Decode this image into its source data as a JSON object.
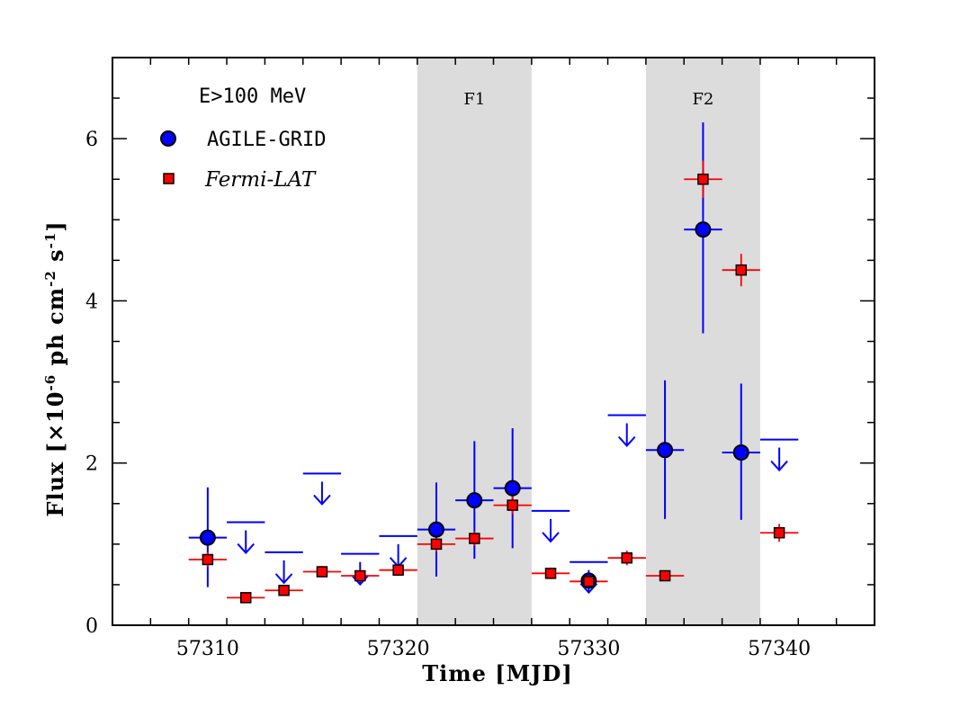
{
  "chart_data": {
    "type": "scatter",
    "xlabel": "Time [MJD]",
    "ylabel_parts": [
      "Flux [×10",
      "-6",
      " ph cm",
      "-2",
      " s",
      "-1",
      "]"
    ],
    "xlim": [
      57305,
      57345
    ],
    "ylim": [
      0,
      7
    ],
    "x_ticks": [
      57310,
      57320,
      57330,
      57340
    ],
    "y_ticks": [
      0,
      2,
      4,
      6
    ],
    "energy_label": "E>100 MeV",
    "bands": [
      {
        "label": "F1",
        "x0": 57321,
        "x1": 57327,
        "color": "#dcdcdc"
      },
      {
        "label": "F2",
        "x0": 57333,
        "x1": 57339,
        "color": "#dcdcdc"
      }
    ],
    "series": [
      {
        "name": "AGILE-GRID",
        "marker": "circle",
        "color": "#0000ff",
        "points": [
          {
            "x": 57310,
            "y": 1.08,
            "xerr": 1,
            "ylo": 0.47,
            "yhi": 1.7
          },
          {
            "x": 57322,
            "y": 1.18,
            "xerr": 1,
            "ylo": 0.6,
            "yhi": 1.76
          },
          {
            "x": 57324,
            "y": 1.54,
            "xerr": 1,
            "ylo": 0.82,
            "yhi": 2.27
          },
          {
            "x": 57326,
            "y": 1.69,
            "xerr": 1,
            "ylo": 0.95,
            "yhi": 2.43
          },
          {
            "x": 57330,
            "y": 0.55,
            "xerr": 0,
            "ylo": 0.55,
            "yhi": 0.55
          },
          {
            "x": 57334,
            "y": 2.16,
            "xerr": 1,
            "ylo": 1.31,
            "yhi": 3.02
          },
          {
            "x": 57336,
            "y": 4.88,
            "xerr": 1,
            "ylo": 3.6,
            "yhi": 6.2
          },
          {
            "x": 57338,
            "y": 2.13,
            "xerr": 1,
            "ylo": 1.3,
            "yhi": 2.98
          }
        ],
        "upper_limits": [
          {
            "x": 57312,
            "y": 1.27,
            "xerr": 1
          },
          {
            "x": 57314,
            "y": 0.9,
            "xerr": 1
          },
          {
            "x": 57316,
            "y": 1.87,
            "xerr": 1
          },
          {
            "x": 57318,
            "y": 0.88,
            "xerr": 1
          },
          {
            "x": 57320,
            "y": 1.1,
            "xerr": 1
          },
          {
            "x": 57328,
            "y": 1.41,
            "xerr": 1
          },
          {
            "x": 57330,
            "y": 0.78,
            "xerr": 1
          },
          {
            "x": 57332,
            "y": 2.59,
            "xerr": 1
          },
          {
            "x": 57340,
            "y": 2.29,
            "xerr": 1
          }
        ]
      },
      {
        "name": "Fermi-LAT",
        "marker": "square",
        "color": "#ff0000",
        "points": [
          {
            "x": 57310,
            "y": 0.81,
            "xerr": 1,
            "ylo": 0.72,
            "yhi": 0.9
          },
          {
            "x": 57312,
            "y": 0.34,
            "xerr": 1,
            "ylo": 0.3,
            "yhi": 0.39
          },
          {
            "x": 57314,
            "y": 0.43,
            "xerr": 1,
            "ylo": 0.38,
            "yhi": 0.48
          },
          {
            "x": 57316,
            "y": 0.66,
            "xerr": 1,
            "ylo": 0.59,
            "yhi": 0.73
          },
          {
            "x": 57318,
            "y": 0.61,
            "xerr": 1,
            "ylo": 0.54,
            "yhi": 0.68
          },
          {
            "x": 57320,
            "y": 0.68,
            "xerr": 1,
            "ylo": 0.61,
            "yhi": 0.75
          },
          {
            "x": 57322,
            "y": 1.0,
            "xerr": 1,
            "ylo": 0.91,
            "yhi": 1.09
          },
          {
            "x": 57324,
            "y": 1.07,
            "xerr": 1,
            "ylo": 0.98,
            "yhi": 1.16
          },
          {
            "x": 57326,
            "y": 1.48,
            "xerr": 1,
            "ylo": 1.37,
            "yhi": 1.59
          },
          {
            "x": 57328,
            "y": 0.64,
            "xerr": 1,
            "ylo": 0.57,
            "yhi": 0.71
          },
          {
            "x": 57330,
            "y": 0.54,
            "xerr": 1,
            "ylo": 0.48,
            "yhi": 0.6
          },
          {
            "x": 57332,
            "y": 0.83,
            "xerr": 1,
            "ylo": 0.74,
            "yhi": 0.92
          },
          {
            "x": 57334,
            "y": 0.61,
            "xerr": 1,
            "ylo": 0.55,
            "yhi": 0.67
          },
          {
            "x": 57336,
            "y": 5.5,
            "xerr": 1,
            "ylo": 5.27,
            "yhi": 5.73
          },
          {
            "x": 57338,
            "y": 4.38,
            "xerr": 1,
            "ylo": 4.18,
            "yhi": 4.58
          },
          {
            "x": 57340,
            "y": 1.14,
            "xerr": 1,
            "ylo": 1.03,
            "yhi": 1.25
          }
        ]
      }
    ],
    "legend_position": "top-left"
  }
}
